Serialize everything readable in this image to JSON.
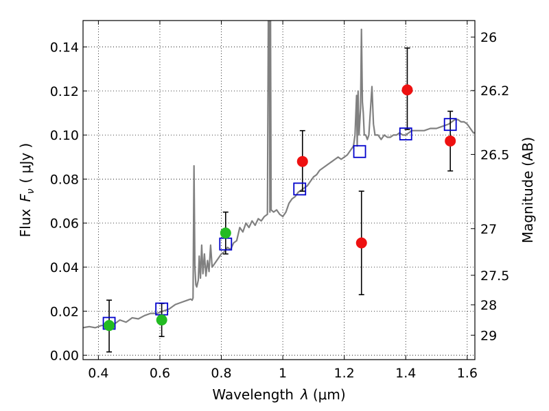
{
  "chart_data": {
    "type": "scatter",
    "xlabel_text": "Wavelength",
    "xlabel_symbol": "λ",
    "xlabel_unit": "(μm)",
    "ylabel_text": "Flux",
    "ylabel_symbol": "F",
    "ylabel_symbol_sub": "ν",
    "ylabel_unit": "( μJy )",
    "y2label": "Magnitude (AB)",
    "xlim": [
      0.35,
      1.625
    ],
    "ylim": [
      -0.002,
      0.152
    ],
    "grid": true,
    "x_ticks": [
      {
        "value": 0.4,
        "label": "0.4"
      },
      {
        "value": 0.6,
        "label": "0.6"
      },
      {
        "value": 0.8,
        "label": "0.8"
      },
      {
        "value": 1.0,
        "label": "1"
      },
      {
        "value": 1.2,
        "label": "1.2"
      },
      {
        "value": 1.4,
        "label": "1.4"
      },
      {
        "value": 1.6,
        "label": "1.6"
      }
    ],
    "y_ticks": [
      {
        "value": 0.0,
        "label": "0.00"
      },
      {
        "value": 0.02,
        "label": "0.02"
      },
      {
        "value": 0.04,
        "label": "0.04"
      },
      {
        "value": 0.06,
        "label": "0.06"
      },
      {
        "value": 0.08,
        "label": "0.08"
      },
      {
        "value": 0.1,
        "label": "0.10"
      },
      {
        "value": 0.12,
        "label": "0.12"
      },
      {
        "value": 0.14,
        "label": "0.14"
      }
    ],
    "y2_ticks": [
      {
        "mag": 26,
        "flux": 0.1445,
        "label": "26"
      },
      {
        "mag": 26.2,
        "flux": 0.1202,
        "label": "26.2"
      },
      {
        "mag": 26.5,
        "flux": 0.0912,
        "label": "26.5"
      },
      {
        "mag": 27,
        "flux": 0.0575,
        "label": "27"
      },
      {
        "mag": 27.5,
        "flux": 0.0363,
        "label": "27.5"
      },
      {
        "mag": 28,
        "flux": 0.0229,
        "label": "28"
      },
      {
        "mag": 29,
        "flux": 0.0091,
        "label": "29"
      }
    ],
    "spectrum": {
      "color": "#808080",
      "points": [
        [
          0.35,
          0.0125
        ],
        [
          0.37,
          0.013
        ],
        [
          0.39,
          0.0125
        ],
        [
          0.41,
          0.0135
        ],
        [
          0.43,
          0.0135
        ],
        [
          0.45,
          0.014
        ],
        [
          0.47,
          0.016
        ],
        [
          0.49,
          0.015
        ],
        [
          0.51,
          0.017
        ],
        [
          0.53,
          0.0165
        ],
        [
          0.55,
          0.018
        ],
        [
          0.57,
          0.019
        ],
        [
          0.59,
          0.019
        ],
        [
          0.61,
          0.02
        ],
        [
          0.63,
          0.021
        ],
        [
          0.65,
          0.023
        ],
        [
          0.67,
          0.024
        ],
        [
          0.69,
          0.025
        ],
        [
          0.7,
          0.0255
        ],
        [
          0.705,
          0.025
        ],
        [
          0.708,
          0.026
        ],
        [
          0.711,
          0.086
        ],
        [
          0.714,
          0.04
        ],
        [
          0.717,
          0.032
        ],
        [
          0.72,
          0.031
        ],
        [
          0.725,
          0.034
        ],
        [
          0.728,
          0.045
        ],
        [
          0.732,
          0.035
        ],
        [
          0.736,
          0.05
        ],
        [
          0.74,
          0.037
        ],
        [
          0.745,
          0.046
        ],
        [
          0.75,
          0.036
        ],
        [
          0.755,
          0.043
        ],
        [
          0.76,
          0.038
        ],
        [
          0.765,
          0.05
        ],
        [
          0.77,
          0.04
        ],
        [
          0.78,
          0.042
        ],
        [
          0.79,
          0.044
        ],
        [
          0.8,
          0.046
        ],
        [
          0.81,
          0.047
        ],
        [
          0.82,
          0.049
        ],
        [
          0.83,
          0.048
        ],
        [
          0.84,
          0.051
        ],
        [
          0.85,
          0.052
        ],
        [
          0.86,
          0.058
        ],
        [
          0.87,
          0.056
        ],
        [
          0.88,
          0.06
        ],
        [
          0.89,
          0.058
        ],
        [
          0.9,
          0.061
        ],
        [
          0.91,
          0.059
        ],
        [
          0.92,
          0.062
        ],
        [
          0.93,
          0.061
        ],
        [
          0.94,
          0.063
        ],
        [
          0.95,
          0.064
        ],
        [
          0.953,
          0.152
        ],
        [
          0.956,
          0.152
        ],
        [
          0.958,
          0.065
        ],
        [
          0.96,
          0.152
        ],
        [
          0.962,
          0.066
        ],
        [
          0.97,
          0.065
        ],
        [
          0.98,
          0.066
        ],
        [
          0.99,
          0.064
        ],
        [
          1.0,
          0.063
        ],
        [
          1.01,
          0.065
        ],
        [
          1.02,
          0.069
        ],
        [
          1.03,
          0.071
        ],
        [
          1.04,
          0.072
        ],
        [
          1.05,
          0.074
        ],
        [
          1.06,
          0.075
        ],
        [
          1.07,
          0.076
        ],
        [
          1.08,
          0.077
        ],
        [
          1.09,
          0.079
        ],
        [
          1.1,
          0.081
        ],
        [
          1.11,
          0.082
        ],
        [
          1.12,
          0.084
        ],
        [
          1.13,
          0.085
        ],
        [
          1.14,
          0.086
        ],
        [
          1.15,
          0.087
        ],
        [
          1.16,
          0.088
        ],
        [
          1.17,
          0.089
        ],
        [
          1.18,
          0.09
        ],
        [
          1.19,
          0.089
        ],
        [
          1.2,
          0.09
        ],
        [
          1.21,
          0.091
        ],
        [
          1.22,
          0.093
        ],
        [
          1.23,
          0.095
        ],
        [
          1.235,
          0.1
        ],
        [
          1.24,
          0.118
        ],
        [
          1.242,
          0.095
        ],
        [
          1.245,
          0.12
        ],
        [
          1.248,
          0.1
        ],
        [
          1.25,
          0.105
        ],
        [
          1.253,
          0.112
        ],
        [
          1.256,
          0.148
        ],
        [
          1.259,
          0.115
        ],
        [
          1.262,
          0.11
        ],
        [
          1.265,
          0.1
        ],
        [
          1.27,
          0.1
        ],
        [
          1.275,
          0.098
        ],
        [
          1.28,
          0.1
        ],
        [
          1.29,
          0.122
        ],
        [
          1.295,
          0.105
        ],
        [
          1.3,
          0.1
        ],
        [
          1.31,
          0.1
        ],
        [
          1.32,
          0.098
        ],
        [
          1.33,
          0.1
        ],
        [
          1.34,
          0.099
        ],
        [
          1.35,
          0.099
        ],
        [
          1.36,
          0.1
        ],
        [
          1.37,
          0.1
        ],
        [
          1.38,
          0.101
        ],
        [
          1.39,
          0.1
        ],
        [
          1.4,
          0.1
        ],
        [
          1.42,
          0.102
        ],
        [
          1.44,
          0.102
        ],
        [
          1.46,
          0.102
        ],
        [
          1.48,
          0.103
        ],
        [
          1.5,
          0.103
        ],
        [
          1.52,
          0.104
        ],
        [
          1.54,
          0.105
        ],
        [
          1.55,
          0.106
        ],
        [
          1.56,
          0.107
        ],
        [
          1.57,
          0.107
        ],
        [
          1.58,
          0.106
        ],
        [
          1.59,
          0.106
        ],
        [
          1.6,
          0.105
        ],
        [
          1.61,
          0.103
        ],
        [
          1.62,
          0.101
        ],
        [
          1.625,
          0.101
        ]
      ]
    },
    "series": [
      {
        "marker": "open-square",
        "color": "#0000cc",
        "points": [
          {
            "x": 0.435,
            "y": 0.0145
          },
          {
            "x": 0.606,
            "y": 0.021
          },
          {
            "x": 0.814,
            "y": 0.0505
          },
          {
            "x": 1.055,
            "y": 0.0755
          },
          {
            "x": 1.25,
            "y": 0.0925
          },
          {
            "x": 1.4,
            "y": 0.1005
          },
          {
            "x": 1.545,
            "y": 0.1048
          }
        ]
      },
      {
        "marker": "filled-circle",
        "color": "#22bb22",
        "points": [
          {
            "x": 0.435,
            "y": 0.0135,
            "yerr_low": 0.0015,
            "yerr_high": 0.025
          },
          {
            "x": 0.606,
            "y": 0.016,
            "yerr_low": 0.0085,
            "yerr_high": 0.0235
          },
          {
            "x": 0.814,
            "y": 0.0555,
            "yerr_low": 0.046,
            "yerr_high": 0.065
          }
        ]
      },
      {
        "marker": "filled-circle",
        "color": "#ee1111",
        "points": [
          {
            "x": 1.064,
            "y": 0.088,
            "yerr_low": 0.0745,
            "yerr_high": 0.102
          },
          {
            "x": 1.256,
            "y": 0.051,
            "yerr_low": 0.0275,
            "yerr_high": 0.0745
          },
          {
            "x": 1.405,
            "y": 0.1205,
            "yerr_low": 0.1025,
            "yerr_high": 0.1395
          },
          {
            "x": 1.545,
            "y": 0.0973,
            "yerr_low": 0.0837,
            "yerr_high": 0.1108
          }
        ]
      }
    ]
  }
}
